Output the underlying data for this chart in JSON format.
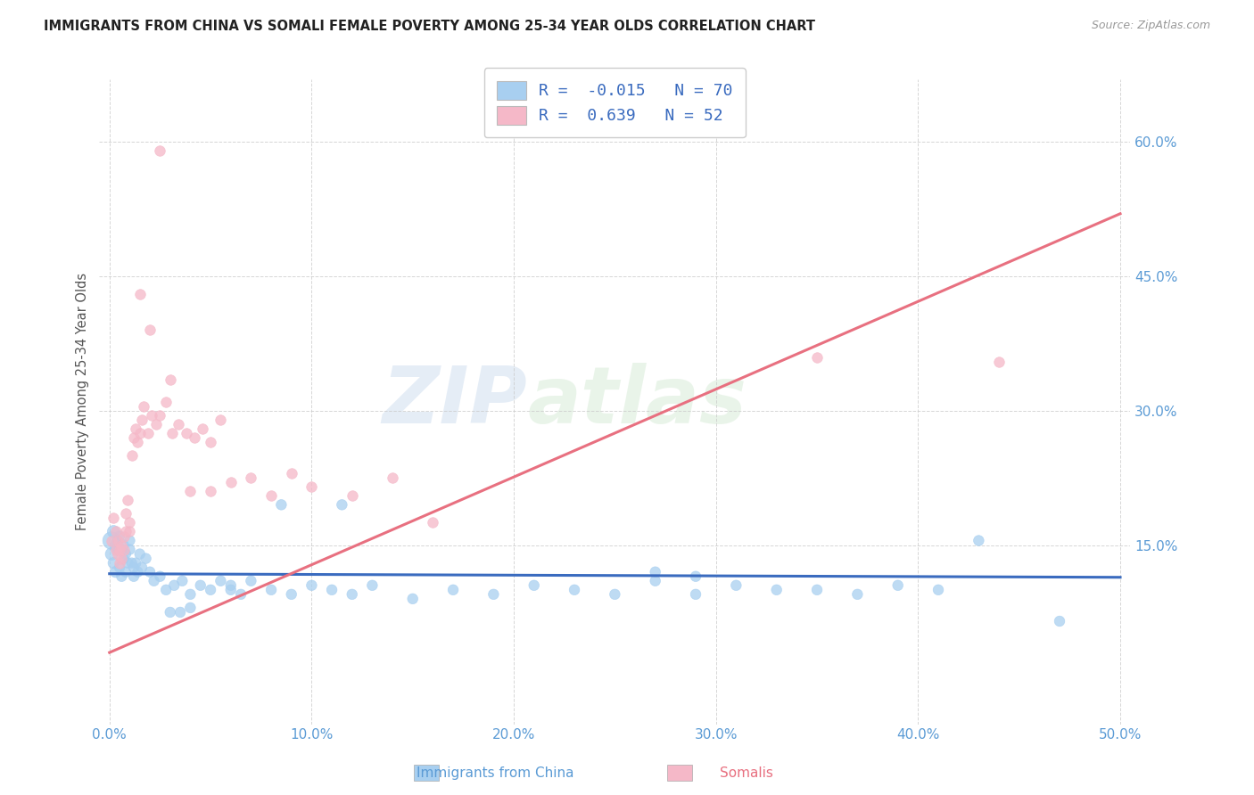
{
  "title": "IMMIGRANTS FROM CHINA VS SOMALI FEMALE POVERTY AMONG 25-34 YEAR OLDS CORRELATION CHART",
  "source": "Source: ZipAtlas.com",
  "xlabel_china": "Immigrants from China",
  "xlabel_somali": "Somalis",
  "ylabel": "Female Poverty Among 25-34 Year Olds",
  "xlim": [
    -0.005,
    0.505
  ],
  "ylim": [
    -0.05,
    0.67
  ],
  "xticks": [
    0.0,
    0.1,
    0.2,
    0.3,
    0.4,
    0.5
  ],
  "xtick_labels": [
    "0.0%",
    "10.0%",
    "20.0%",
    "30.0%",
    "40.0%",
    "50.0%"
  ],
  "yticks": [
    0.15,
    0.3,
    0.45,
    0.6
  ],
  "ytick_labels": [
    "15.0%",
    "30.0%",
    "45.0%",
    "60.0%"
  ],
  "china_R": -0.015,
  "china_N": 70,
  "somali_R": 0.639,
  "somali_N": 52,
  "china_color": "#a8cff0",
  "somali_color": "#f5b8c8",
  "china_line_color": "#3a6bbf",
  "somali_line_color": "#e87080",
  "watermark_zip": "ZIP",
  "watermark_atlas": "atlas",
  "china_line_x": [
    0.0,
    0.5
  ],
  "china_line_y": [
    0.118,
    0.114
  ],
  "somali_line_x": [
    0.0,
    0.5
  ],
  "somali_line_y": [
    0.03,
    0.52
  ],
  "china_scatter_x": [
    0.001,
    0.001,
    0.002,
    0.002,
    0.003,
    0.003,
    0.004,
    0.004,
    0.005,
    0.005,
    0.006,
    0.006,
    0.007,
    0.007,
    0.008,
    0.008,
    0.009,
    0.01,
    0.01,
    0.011,
    0.012,
    0.012,
    0.013,
    0.014,
    0.015,
    0.016,
    0.018,
    0.02,
    0.022,
    0.025,
    0.028,
    0.032,
    0.036,
    0.04,
    0.045,
    0.05,
    0.055,
    0.06,
    0.065,
    0.07,
    0.08,
    0.09,
    0.1,
    0.11,
    0.12,
    0.13,
    0.15,
    0.17,
    0.19,
    0.21,
    0.23,
    0.25,
    0.27,
    0.29,
    0.31,
    0.33,
    0.35,
    0.37,
    0.39,
    0.41,
    0.03,
    0.035,
    0.04,
    0.06,
    0.085,
    0.115,
    0.27,
    0.29,
    0.43,
    0.47
  ],
  "china_scatter_y": [
    0.155,
    0.14,
    0.165,
    0.13,
    0.15,
    0.12,
    0.155,
    0.145,
    0.16,
    0.125,
    0.145,
    0.115,
    0.15,
    0.135,
    0.14,
    0.12,
    0.13,
    0.145,
    0.155,
    0.13,
    0.125,
    0.115,
    0.13,
    0.12,
    0.14,
    0.125,
    0.135,
    0.12,
    0.11,
    0.115,
    0.1,
    0.105,
    0.11,
    0.095,
    0.105,
    0.1,
    0.11,
    0.105,
    0.095,
    0.11,
    0.1,
    0.095,
    0.105,
    0.1,
    0.095,
    0.105,
    0.09,
    0.1,
    0.095,
    0.105,
    0.1,
    0.095,
    0.11,
    0.095,
    0.105,
    0.1,
    0.1,
    0.095,
    0.105,
    0.1,
    0.075,
    0.075,
    0.08,
    0.1,
    0.195,
    0.195,
    0.12,
    0.115,
    0.155,
    0.065
  ],
  "china_scatter_sizes": [
    200,
    100,
    100,
    80,
    80,
    80,
    70,
    70,
    70,
    70,
    70,
    70,
    70,
    70,
    70,
    70,
    70,
    70,
    70,
    70,
    70,
    70,
    70,
    70,
    70,
    70,
    70,
    70,
    70,
    70,
    70,
    70,
    70,
    70,
    70,
    70,
    70,
    70,
    70,
    70,
    70,
    70,
    70,
    70,
    70,
    70,
    70,
    70,
    70,
    70,
    70,
    70,
    70,
    70,
    70,
    70,
    70,
    70,
    70,
    70,
    70,
    70,
    70,
    70,
    70,
    70,
    70,
    70,
    70,
    70
  ],
  "somali_scatter_x": [
    0.001,
    0.002,
    0.003,
    0.003,
    0.004,
    0.004,
    0.005,
    0.005,
    0.006,
    0.006,
    0.007,
    0.007,
    0.008,
    0.008,
    0.009,
    0.01,
    0.01,
    0.011,
    0.012,
    0.013,
    0.014,
    0.015,
    0.016,
    0.017,
    0.019,
    0.021,
    0.023,
    0.025,
    0.028,
    0.031,
    0.034,
    0.038,
    0.042,
    0.046,
    0.05,
    0.055,
    0.06,
    0.07,
    0.08,
    0.09,
    0.1,
    0.12,
    0.14,
    0.16,
    0.35,
    0.44,
    0.015,
    0.02,
    0.025,
    0.03,
    0.04,
    0.05
  ],
  "somali_scatter_y": [
    0.155,
    0.18,
    0.165,
    0.145,
    0.155,
    0.14,
    0.145,
    0.13,
    0.15,
    0.135,
    0.16,
    0.145,
    0.185,
    0.165,
    0.2,
    0.165,
    0.175,
    0.25,
    0.27,
    0.28,
    0.265,
    0.275,
    0.29,
    0.305,
    0.275,
    0.295,
    0.285,
    0.295,
    0.31,
    0.275,
    0.285,
    0.275,
    0.27,
    0.28,
    0.265,
    0.29,
    0.22,
    0.225,
    0.205,
    0.23,
    0.215,
    0.205,
    0.225,
    0.175,
    0.36,
    0.355,
    0.43,
    0.39,
    0.59,
    0.335,
    0.21,
    0.21
  ]
}
